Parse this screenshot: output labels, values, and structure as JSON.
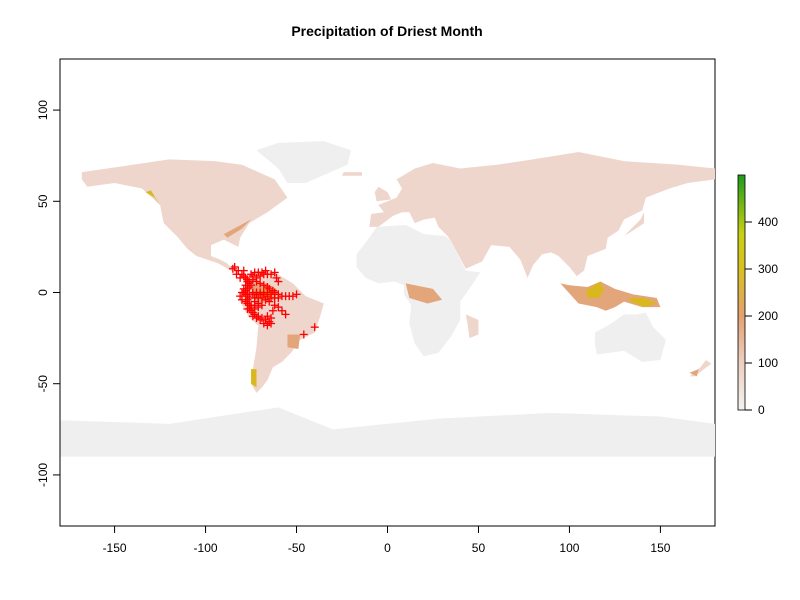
{
  "title": "Precipitation of Driest Month",
  "x_axis": {
    "ticks": [
      -150,
      -100,
      -50,
      0,
      50,
      100,
      150
    ],
    "range": [
      -180,
      180
    ]
  },
  "y_axis": {
    "ticks": [
      -100,
      -50,
      0,
      50,
      100
    ],
    "range": [
      -128,
      128
    ]
  },
  "legend": {
    "ticks": [
      0,
      100,
      200,
      300,
      400
    ],
    "range": [
      0,
      500
    ],
    "colors": [
      "#f2f2f2",
      "#eecfc0",
      "#e4a171",
      "#d9c020",
      "#c9d010",
      "#1e9b1e"
    ]
  },
  "colors": {
    "land_dry": "#efefef",
    "land_low": "#efd6cc",
    "land_mid": "#e3a57a",
    "land_high": "#d9b81f",
    "land_wet": "#2e9e2e",
    "antarctica": "#efefef",
    "occurrence": "#ff0000"
  },
  "occurrences": [
    [
      -84,
      14
    ],
    [
      -82,
      12
    ],
    [
      -80,
      10
    ],
    [
      -79,
      9
    ],
    [
      -78,
      8
    ],
    [
      -77,
      7
    ],
    [
      -76,
      6
    ],
    [
      -76,
      5
    ],
    [
      -75,
      4
    ],
    [
      -76,
      3
    ],
    [
      -77,
      2
    ],
    [
      -78,
      1
    ],
    [
      -79,
      0
    ],
    [
      -78,
      -1
    ],
    [
      -77,
      -2
    ],
    [
      -76,
      -3
    ],
    [
      -77,
      -4
    ],
    [
      -78,
      -5
    ],
    [
      -77,
      -6
    ],
    [
      -76,
      -7
    ],
    [
      -75,
      -8
    ],
    [
      -76,
      -9
    ],
    [
      -75,
      -10
    ],
    [
      -74,
      -11
    ],
    [
      -73,
      -12
    ],
    [
      -71,
      -13
    ],
    [
      -69,
      -14
    ],
    [
      -67,
      -15
    ],
    [
      -65,
      -16
    ],
    [
      -64,
      -17
    ],
    [
      -66,
      -18
    ],
    [
      -68,
      -17
    ],
    [
      -70,
      -15
    ],
    [
      -72,
      -14
    ],
    [
      -74,
      -13
    ],
    [
      -80,
      -4
    ],
    [
      -81,
      -2
    ],
    [
      -80,
      0
    ],
    [
      -79,
      2
    ],
    [
      -78,
      4
    ],
    [
      -77,
      6
    ],
    [
      -74,
      7
    ],
    [
      -72,
      8
    ],
    [
      -70,
      9
    ],
    [
      -68,
      10
    ],
    [
      -66,
      10
    ],
    [
      -64,
      10
    ],
    [
      -62,
      11
    ],
    [
      -61,
      8
    ],
    [
      -60,
      6
    ],
    [
      -73,
      11
    ],
    [
      -71,
      11
    ],
    [
      -75,
      10
    ],
    [
      -74,
      9
    ],
    [
      -72,
      6
    ],
    [
      -70,
      5
    ],
    [
      -68,
      4
    ],
    [
      -66,
      3
    ],
    [
      -65,
      2
    ],
    [
      -63,
      1
    ],
    [
      -62,
      0
    ],
    [
      -60,
      -1
    ],
    [
      -58,
      -2
    ],
    [
      -56,
      -2
    ],
    [
      -54,
      -2
    ],
    [
      -52,
      -2
    ],
    [
      -50,
      -1
    ],
    [
      -66,
      -2
    ],
    [
      -64,
      -3
    ],
    [
      -62,
      -3
    ],
    [
      -60,
      -3
    ],
    [
      -68,
      -1
    ],
    [
      -70,
      -1
    ],
    [
      -72,
      -1
    ],
    [
      -74,
      -1
    ],
    [
      -76,
      -1
    ],
    [
      -74,
      0
    ],
    [
      -72,
      0
    ],
    [
      -70,
      0
    ],
    [
      -68,
      0
    ],
    [
      -66,
      0
    ],
    [
      -64,
      -1
    ],
    [
      -73,
      -3
    ],
    [
      -71,
      -3
    ],
    [
      -69,
      -3
    ],
    [
      -67,
      -4
    ],
    [
      -65,
      -5
    ],
    [
      -73,
      -5
    ],
    [
      -71,
      -6
    ],
    [
      -69,
      -7
    ],
    [
      -71,
      -8
    ],
    [
      -73,
      -9
    ],
    [
      -63,
      -10
    ],
    [
      -66,
      -13
    ],
    [
      -64,
      -14
    ],
    [
      -62,
      -7
    ],
    [
      -60,
      -8
    ],
    [
      -58,
      -10
    ],
    [
      -56,
      -12
    ],
    [
      -46,
      -23
    ],
    [
      -40,
      -19
    ],
    [
      -79,
      12
    ],
    [
      -81,
      8
    ],
    [
      -83,
      10
    ],
    [
      -85,
      13
    ],
    [
      -69,
      11
    ],
    [
      -67,
      12
    ],
    [
      -75,
      -7
    ],
    [
      -77,
      -9
    ],
    [
      -73,
      -7
    ]
  ]
}
